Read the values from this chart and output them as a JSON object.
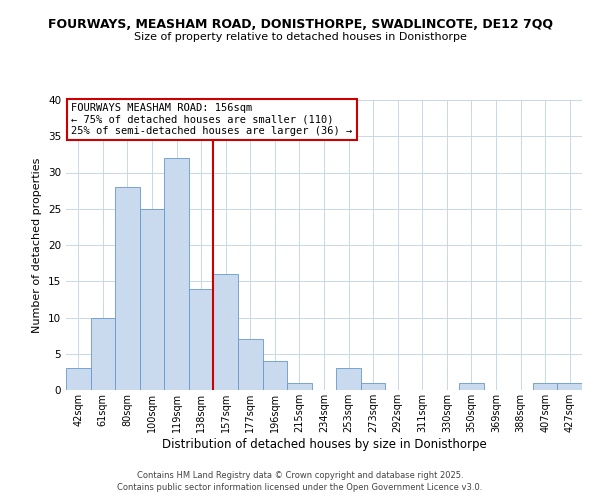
{
  "title_line1": "FOURWAYS, MEASHAM ROAD, DONISTHORPE, SWADLINCOTE, DE12 7QQ",
  "title_line2": "Size of property relative to detached houses in Donisthorpe",
  "xlabel": "Distribution of detached houses by size in Donisthorpe",
  "ylabel": "Number of detached properties",
  "bin_labels": [
    "42sqm",
    "61sqm",
    "80sqm",
    "100sqm",
    "119sqm",
    "138sqm",
    "157sqm",
    "177sqm",
    "196sqm",
    "215sqm",
    "234sqm",
    "253sqm",
    "273sqm",
    "292sqm",
    "311sqm",
    "330sqm",
    "350sqm",
    "369sqm",
    "388sqm",
    "407sqm",
    "427sqm"
  ],
  "bar_heights": [
    3,
    10,
    28,
    25,
    32,
    14,
    16,
    7,
    4,
    1,
    0,
    3,
    1,
    0,
    0,
    0,
    1,
    0,
    0,
    1,
    1
  ],
  "bar_color": "#c9d9ee",
  "bar_edge_color": "#6699cc",
  "vline_x_index": 6,
  "vline_color": "#cc0000",
  "annotation_title": "FOURWAYS MEASHAM ROAD: 156sqm",
  "annotation_line2": "← 75% of detached houses are smaller (110)",
  "annotation_line3": "25% of semi-detached houses are larger (36) →",
  "annotation_box_edge_color": "#cc0000",
  "ylim": [
    0,
    40
  ],
  "yticks": [
    0,
    5,
    10,
    15,
    20,
    25,
    30,
    35,
    40
  ],
  "footnote_line1": "Contains HM Land Registry data © Crown copyright and database right 2025.",
  "footnote_line2": "Contains public sector information licensed under the Open Government Licence v3.0.",
  "background_color": "#ffffff",
  "grid_color": "#c8d8e8"
}
